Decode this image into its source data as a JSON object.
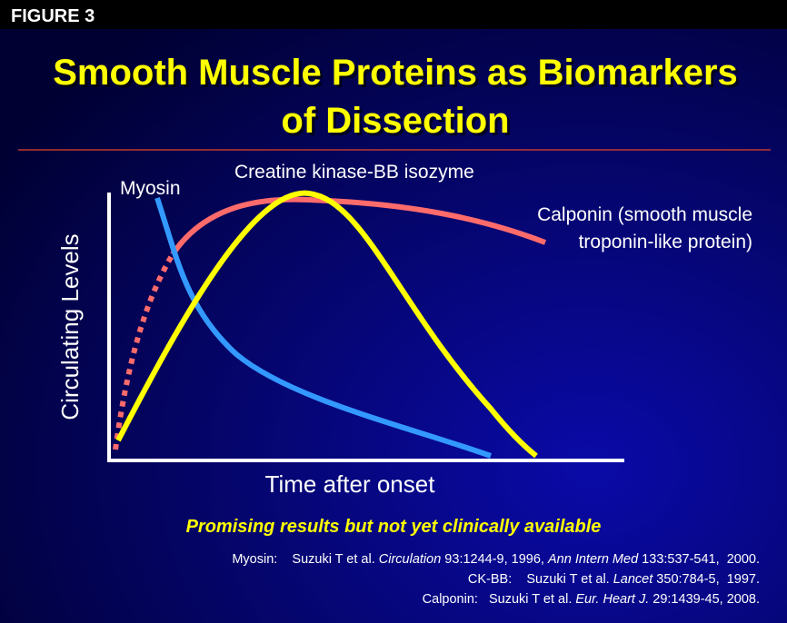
{
  "header": {
    "figure_label": "FIGURE 3"
  },
  "title": [
    "Smooth Muscle Proteins as Biomarkers",
    "of Dissection"
  ],
  "diagram": {
    "y_axis_label": "Circulating Levels",
    "x_axis_label": "Time after onset",
    "curve_labels": {
      "myosin": "Myosin",
      "ck_bb": "Creatine kinase-BB isozyme",
      "calponin": [
        "Calponin (smooth muscle",
        "troponin-like protein)"
      ]
    }
  },
  "note": "Promising results but not yet clinically available",
  "references": [
    [
      "Myosin:    Suzuki T et al. ",
      "Circulation",
      " 93:1244-9, 1996, ",
      "Ann Intern Med",
      " 133:537-541,  2000."
    ],
    [
      "CK-BB:    Suzuki T et al. ",
      "Lancet",
      " 350:784-5,  1997."
    ],
    [
      "Calponin:   Suzuki T et al. ",
      "Eur. Heart J.",
      " 29:1439-45, 2008."
    ]
  ]
}
